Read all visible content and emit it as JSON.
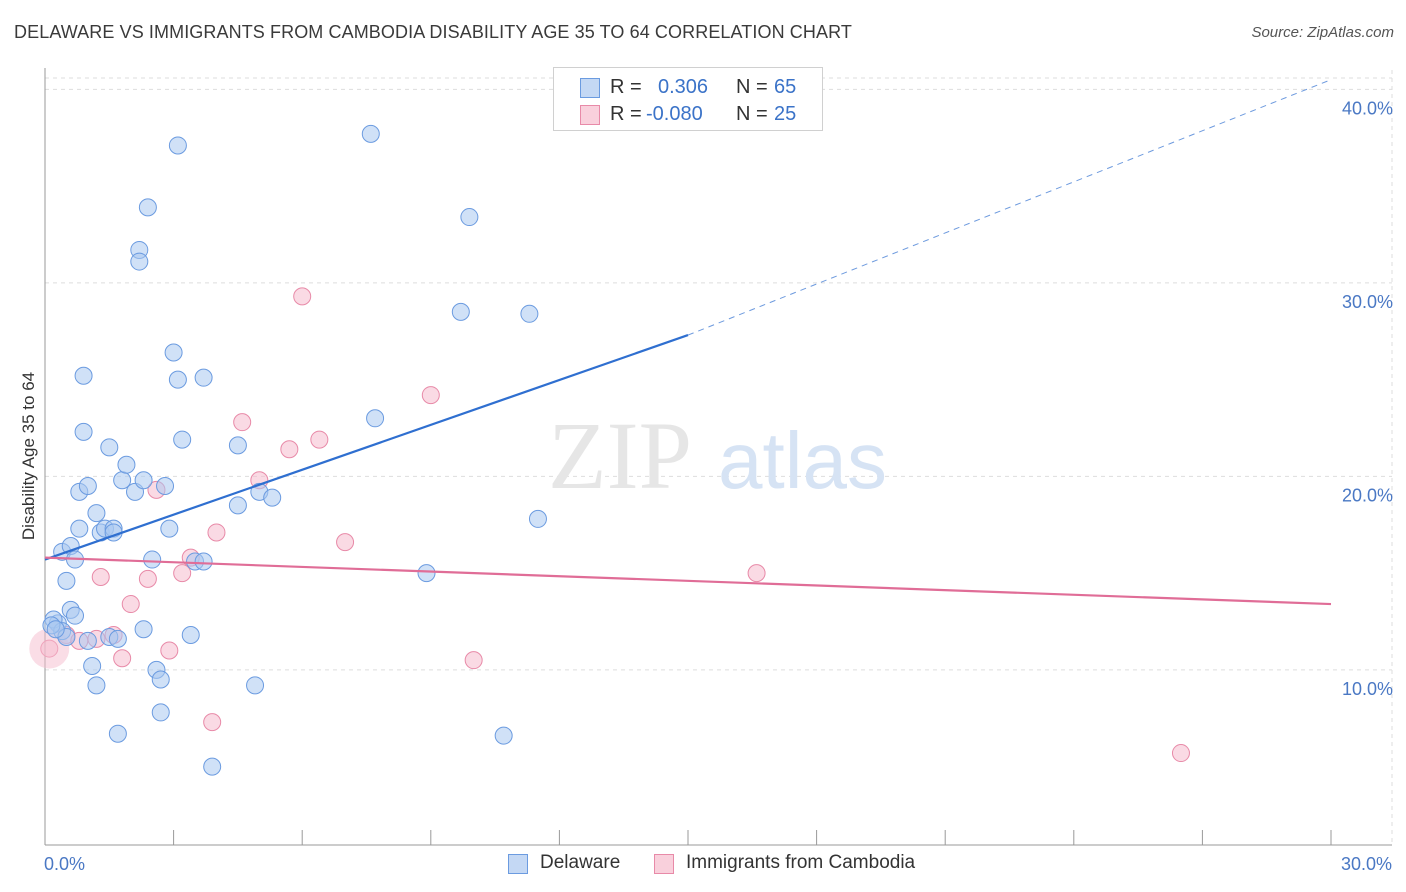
{
  "title": "DELAWARE VS IMMIGRANTS FROM CAMBODIA DISABILITY AGE 35 TO 64 CORRELATION CHART",
  "source": "Source: ZipAtlas.com",
  "colors": {
    "blue_fill": "#aac8f0",
    "blue_stroke": "#6b9be0",
    "blue_line": "#2f6fd0",
    "pink_fill": "#f6bccd",
    "pink_stroke": "#e88aa8",
    "pink_line": "#e06d97",
    "grid": "#dddddd",
    "tick": "#4a78c4"
  },
  "legend": {
    "rows": [
      {
        "r_label": "R =",
        "r_value": "0.306",
        "n_label": "N =",
        "n_value": "65"
      },
      {
        "r_label": "R =",
        "r_value": "-0.080",
        "n_label": "N =",
        "n_value": "25"
      }
    ]
  },
  "bottom_legend": {
    "series1": "Delaware",
    "series2": "Immigrants from Cambodia"
  },
  "watermark": {
    "zip": "ZIP",
    "atlas": "atlas"
  },
  "chart_data": {
    "type": "scatter",
    "title": "DELAWARE VS IMMIGRANTS FROM CAMBODIA DISABILITY AGE 35 TO 64 CORRELATION CHART",
    "xlabel": "",
    "ylabel": "Disability Age 35 to 64",
    "xlim": [
      0,
      30
    ],
    "ylim": [
      1,
      41
    ],
    "x_tick_labels": [
      "0.0%",
      "30.0%"
    ],
    "y_ticks": [
      10,
      20,
      30,
      40
    ],
    "y_tick_labels": [
      "10.0%",
      "20.0%",
      "30.0%",
      "40.0%"
    ],
    "series": [
      {
        "name": "Delaware",
        "r": 0.306,
        "n": 65,
        "trend": {
          "x0": 0,
          "y0": 15.7,
          "x1": 15,
          "y1": 27.3,
          "dash_to_x": 30,
          "dash_to_y": 40.5
        },
        "points": [
          [
            0.3,
            12.4
          ],
          [
            0.2,
            12.6
          ],
          [
            0.4,
            12.0
          ],
          [
            0.5,
            11.7
          ],
          [
            0.4,
            16.1
          ],
          [
            0.6,
            16.4
          ],
          [
            0.5,
            14.6
          ],
          [
            0.6,
            13.1
          ],
          [
            0.7,
            15.7
          ],
          [
            0.7,
            12.8
          ],
          [
            0.8,
            17.3
          ],
          [
            0.8,
            19.2
          ],
          [
            0.9,
            22.3
          ],
          [
            0.9,
            25.2
          ],
          [
            1.0,
            19.5
          ],
          [
            1.0,
            11.5
          ],
          [
            1.1,
            10.2
          ],
          [
            1.2,
            9.2
          ],
          [
            1.2,
            18.1
          ],
          [
            1.3,
            17.1
          ],
          [
            1.4,
            17.3
          ],
          [
            1.5,
            21.5
          ],
          [
            1.5,
            11.7
          ],
          [
            1.6,
            17.3
          ],
          [
            1.6,
            17.1
          ],
          [
            1.7,
            11.6
          ],
          [
            1.7,
            6.7
          ],
          [
            1.8,
            19.8
          ],
          [
            1.9,
            20.6
          ],
          [
            2.1,
            19.2
          ],
          [
            2.2,
            31.7
          ],
          [
            2.2,
            31.1
          ],
          [
            2.3,
            19.8
          ],
          [
            2.3,
            12.1
          ],
          [
            2.4,
            33.9
          ],
          [
            2.5,
            15.7
          ],
          [
            2.6,
            10.0
          ],
          [
            2.7,
            9.5
          ],
          [
            2.7,
            7.8
          ],
          [
            2.8,
            19.5
          ],
          [
            2.9,
            17.3
          ],
          [
            3.0,
            26.4
          ],
          [
            3.1,
            25.0
          ],
          [
            3.1,
            37.1
          ],
          [
            3.2,
            21.9
          ],
          [
            3.4,
            11.8
          ],
          [
            3.5,
            15.6
          ],
          [
            3.7,
            15.6
          ],
          [
            3.7,
            25.1
          ],
          [
            3.9,
            5.0
          ],
          [
            4.5,
            18.5
          ],
          [
            4.5,
            21.6
          ],
          [
            4.9,
            9.2
          ],
          [
            5.0,
            19.2
          ],
          [
            5.3,
            18.9
          ],
          [
            7.6,
            37.7
          ],
          [
            7.7,
            23.0
          ],
          [
            8.9,
            15.0
          ],
          [
            9.7,
            28.5
          ],
          [
            9.9,
            33.4
          ],
          [
            10.7,
            6.6
          ],
          [
            11.3,
            28.4
          ],
          [
            11.5,
            17.8
          ],
          [
            0.15,
            12.3
          ],
          [
            0.25,
            12.1
          ]
        ]
      },
      {
        "name": "Immigrants from Cambodia",
        "r": -0.08,
        "n": 25,
        "trend": {
          "x0": 0,
          "y0": 15.8,
          "x1": 30,
          "y1": 13.4
        },
        "points": [
          [
            0.1,
            11.1
          ],
          [
            0.5,
            11.8
          ],
          [
            0.8,
            11.5
          ],
          [
            1.2,
            11.6
          ],
          [
            1.3,
            14.8
          ],
          [
            1.6,
            11.8
          ],
          [
            1.8,
            10.6
          ],
          [
            2.0,
            13.4
          ],
          [
            2.4,
            14.7
          ],
          [
            2.6,
            19.3
          ],
          [
            2.9,
            11.0
          ],
          [
            3.2,
            15.0
          ],
          [
            3.4,
            15.8
          ],
          [
            3.9,
            7.3
          ],
          [
            4.0,
            17.1
          ],
          [
            4.6,
            22.8
          ],
          [
            5.0,
            19.8
          ],
          [
            5.7,
            21.4
          ],
          [
            6.0,
            29.3
          ],
          [
            6.4,
            21.9
          ],
          [
            7.0,
            16.6
          ],
          [
            9.0,
            24.2
          ],
          [
            10.0,
            10.5
          ],
          [
            16.6,
            15.0
          ],
          [
            26.5,
            5.7
          ]
        ]
      }
    ]
  }
}
